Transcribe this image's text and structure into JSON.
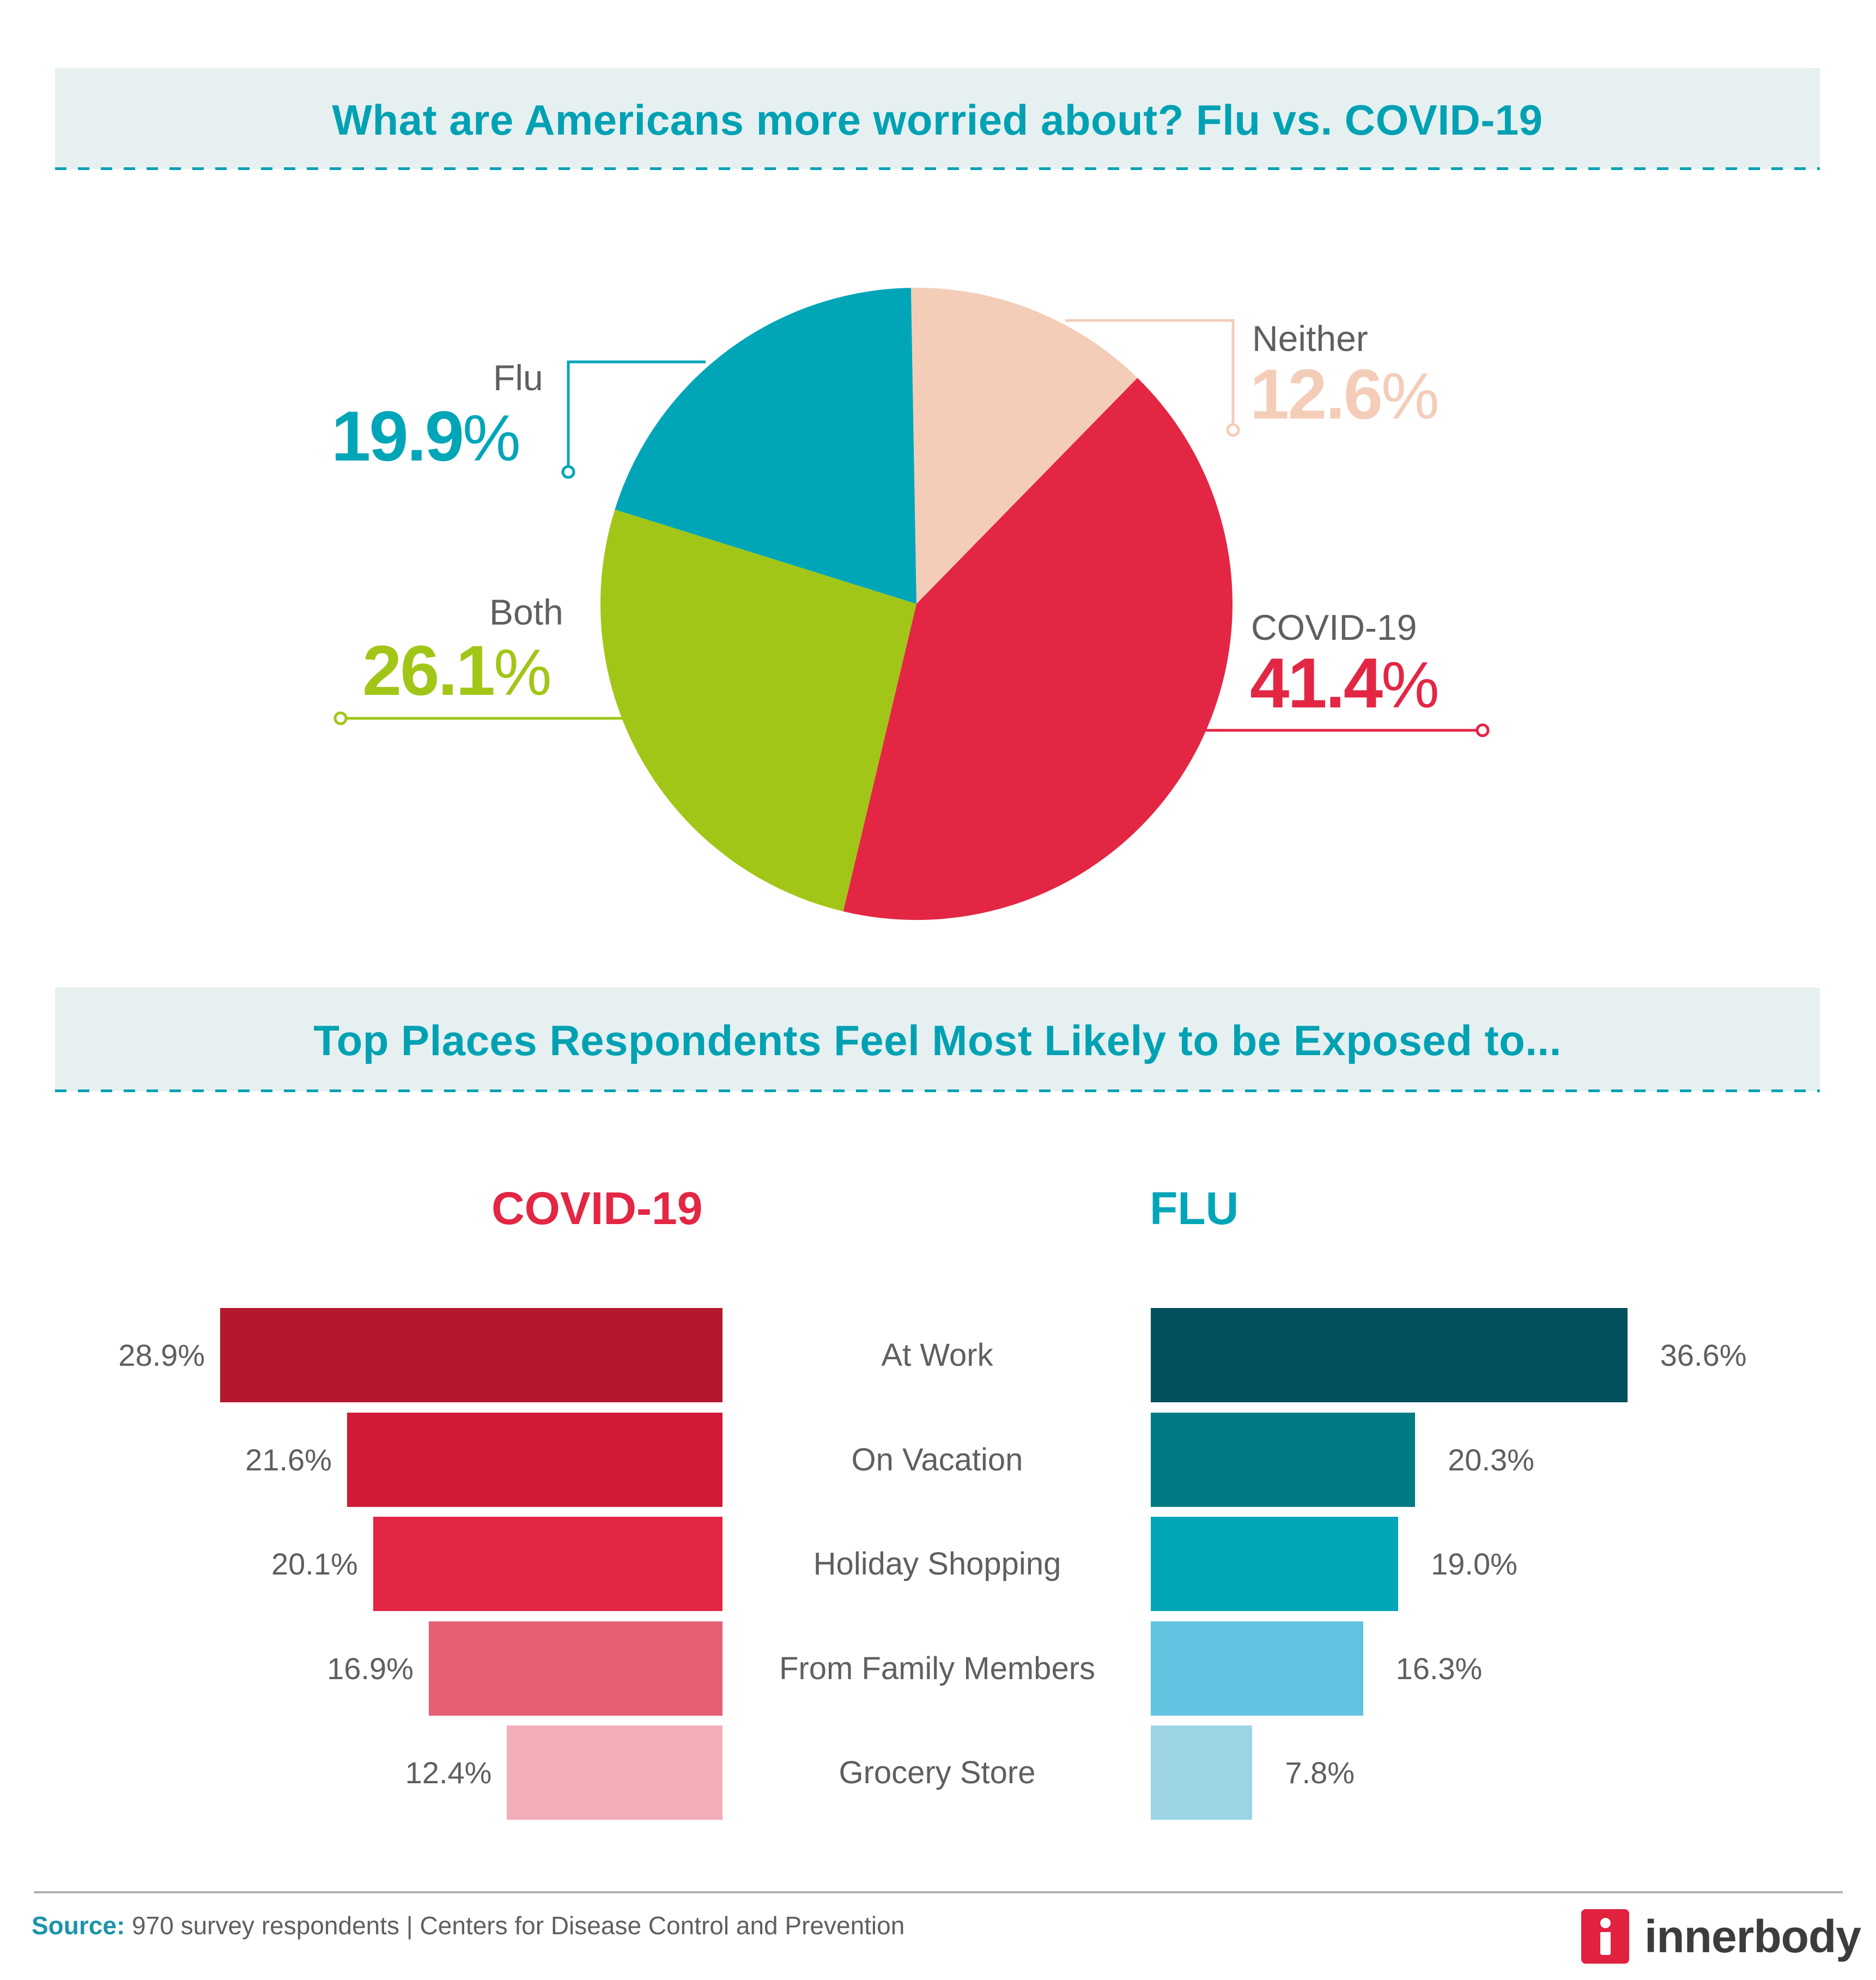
{
  "section1": {
    "title": "What are Americans more worried about? Flu vs. COVID-19"
  },
  "section2": {
    "title": "Top Places Respondents Feel Most Likely to be Exposed to..."
  },
  "pie": {
    "slices": [
      {
        "label": "Neither",
        "value": "12.6",
        "pct": "%",
        "color": "#f4cdb8"
      },
      {
        "label": "COVID-19",
        "value": "41.4",
        "pct": "%",
        "color": "#e32644"
      },
      {
        "label": "Both",
        "value": "26.1",
        "pct": "%",
        "color": "#a2c617"
      },
      {
        "label": "Flu",
        "value": "19.9",
        "pct": "%",
        "color": "#00a6b8"
      }
    ]
  },
  "bars": {
    "covid_title": "COVID-19",
    "flu_title": "FLU",
    "categories": [
      "At Work",
      "On Vacation",
      "Holiday Shopping",
      "From Family Members",
      "Grocery Store"
    ],
    "covid": [
      {
        "value": "28.9%",
        "color": "#b3182e"
      },
      {
        "value": "21.6%",
        "color": "#d01a37"
      },
      {
        "value": "20.1%",
        "color": "#e32644"
      },
      {
        "value": "16.9%",
        "color": "#e66075"
      },
      {
        "value": "12.4%",
        "color": "#f2aeb8"
      }
    ],
    "flu": [
      {
        "value": "36.6%",
        "color": "#03505d"
      },
      {
        "value": "20.3%",
        "color": "#007b84"
      },
      {
        "value": "19.0%",
        "color": "#00a6b8"
      },
      {
        "value": "16.3%",
        "color": "#62c3e1"
      },
      {
        "value": "7.8%",
        "color": "#9cd4e6"
      }
    ]
  },
  "footer": {
    "source_label": "Source:",
    "source_text": " 970 survey respondents | Centers for Disease Control and Prevention",
    "brand": "innerbody"
  },
  "chart_data": [
    {
      "type": "pie",
      "title": "What are Americans more worried about? Flu vs. COVID-19",
      "categories": [
        "Neither",
        "COVID-19",
        "Both",
        "Flu"
      ],
      "values": [
        12.6,
        41.4,
        26.1,
        19.9
      ],
      "colors": [
        "#f4cdb8",
        "#e32644",
        "#a2c617",
        "#00a6b8"
      ],
      "unit": "%"
    },
    {
      "type": "bar",
      "orientation": "horizontal",
      "title": "Top Places Respondents Feel Most Likely to be Exposed to...",
      "categories": [
        "At Work",
        "On Vacation",
        "Holiday Shopping",
        "From Family Members",
        "Grocery Store"
      ],
      "series": [
        {
          "name": "COVID-19",
          "values": [
            28.9,
            21.6,
            20.1,
            16.9,
            12.4
          ]
        },
        {
          "name": "FLU",
          "values": [
            36.6,
            20.3,
            19.0,
            16.3,
            7.8
          ]
        }
      ],
      "unit": "%",
      "xlabel": "",
      "ylabel": ""
    }
  ]
}
